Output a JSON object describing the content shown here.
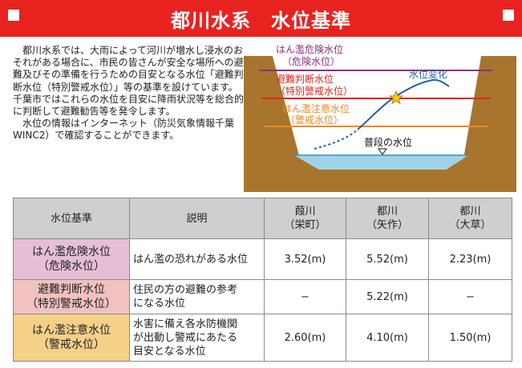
{
  "header": {
    "title": "都川水系　水位基準"
  },
  "intro": {
    "paragraph1": "都川水系では、大雨によって河川が増水し浸水のおそれがある場合に、市民の皆さんが安全な場所への避難及びその準備を行うための目安となる水位「避難判断水位（特別警戒水位）」等の基準を設けています。千葉市ではこれらの水位を目安に降雨状況等を総合的に判断して避難勧告等を発令します。",
    "paragraph2": "水位の情報はインターネット（防災気象情報千葉　WINC2）で確認することができます。"
  },
  "diagram": {
    "danger_label_1": "はん濫危険水位",
    "danger_label_2": "（危険水位）",
    "evac_label_1": "避難判断水位",
    "evac_label_2": "（特別警戒水位）",
    "caution_label_1": "はん濫注意水位",
    "caution_label_2": "（警戒水位）",
    "change_label": "水位変化",
    "normal_label": "普段の水位",
    "colors": {
      "danger": "#8b2f86",
      "evac": "#e8231f",
      "caution": "#f08a22",
      "water": "#9fd3ea",
      "earth": "#a8752e"
    }
  },
  "table": {
    "headers": {
      "level": "水位基準",
      "desc": "説明",
      "col1_1": "葭川",
      "col1_2": "（栄町）",
      "col2_1": "都川",
      "col2_2": "（矢作）",
      "col3_1": "都川",
      "col3_2": "（大草）"
    },
    "rows": [
      {
        "name_1": "はん濫危険水位",
        "name_2": "（危険水位）",
        "desc_1": "はん濫の恐れがある水位",
        "desc_2": "",
        "desc_3": "",
        "v1": "3.52(m)",
        "v2": "5.52(m)",
        "v3": "2.23(m)"
      },
      {
        "name_1": "避難判断水位",
        "name_2": "（特別警戒水位）",
        "desc_1": "住民の方の避難の参考",
        "desc_2": "になる水位",
        "desc_3": "",
        "v1": "−",
        "v2": "5.22(m)",
        "v3": "−"
      },
      {
        "name_1": "はん濫注意水位",
        "name_2": "（警戒水位）",
        "desc_1": "水害に備え各水防機関",
        "desc_2": "が出動し警戒にあたる",
        "desc_3": "目安となる水位",
        "v1": "2.60(m)",
        "v2": "4.10(m)",
        "v3": "1.50(m)"
      }
    ]
  }
}
